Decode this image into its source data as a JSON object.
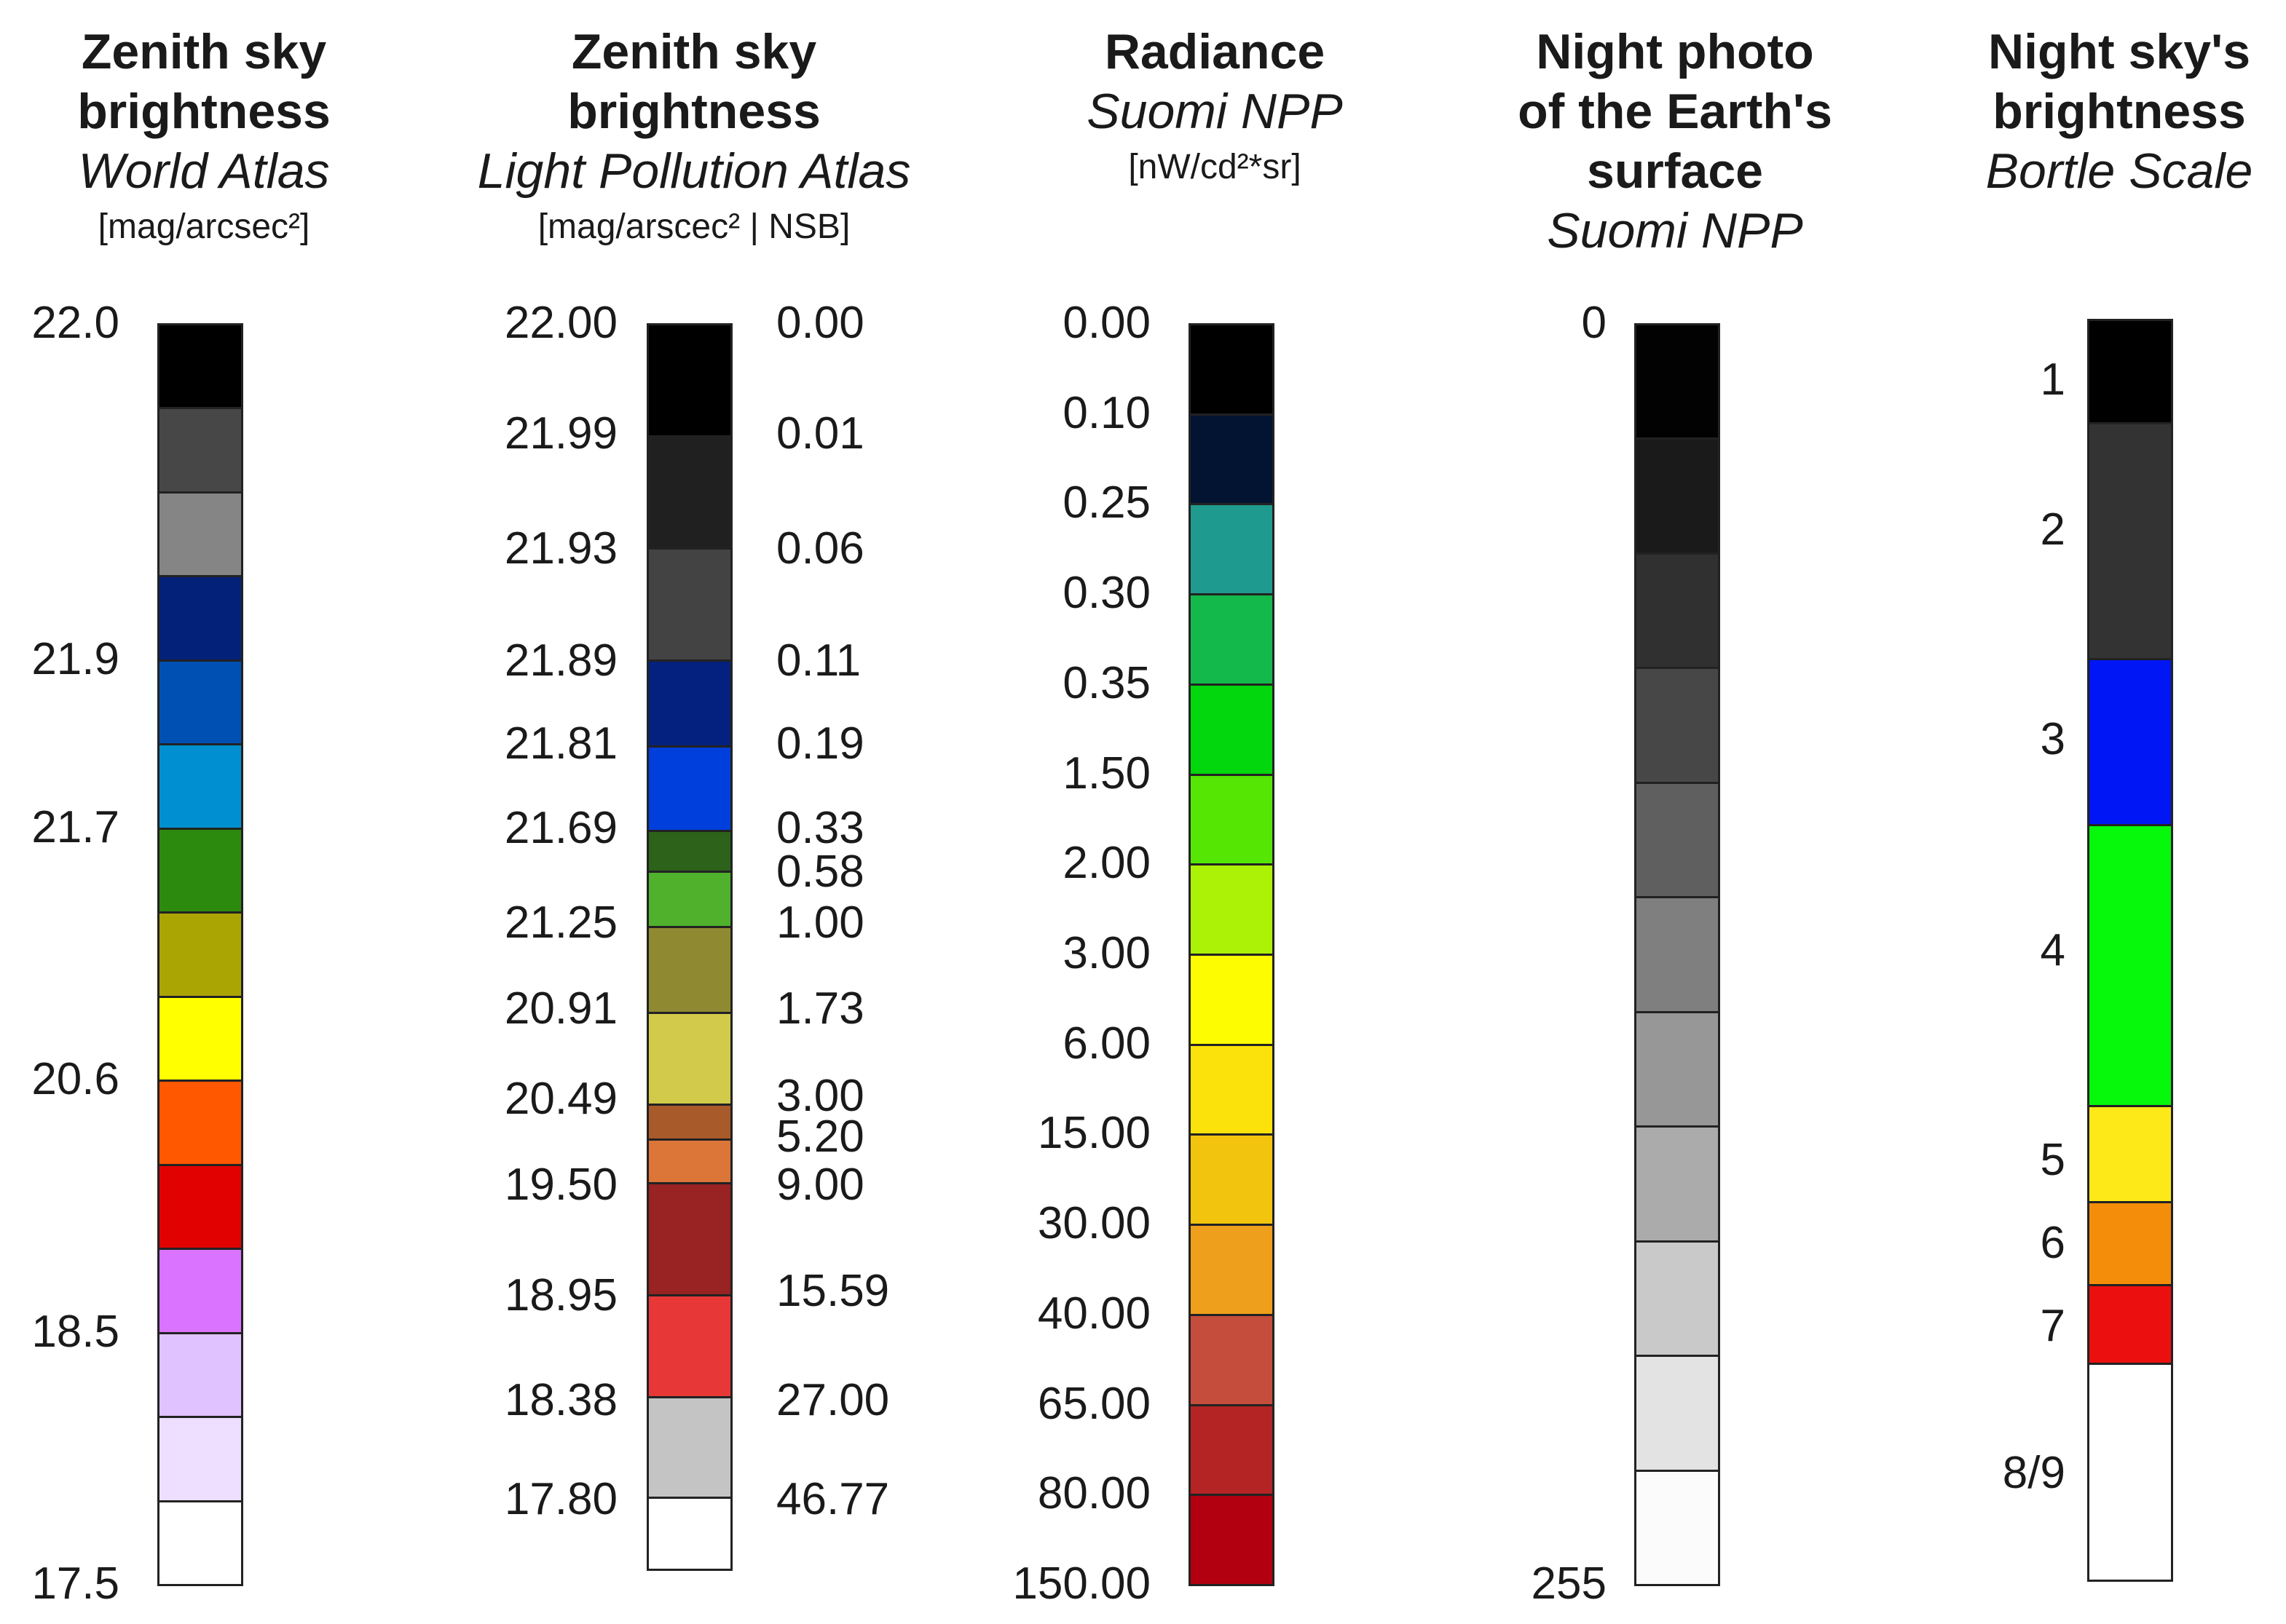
{
  "columns": [
    {
      "title_bold": "Zenith sky brightness",
      "title_bold_lines": [
        "Zenith sky",
        "brightness"
      ],
      "subtitle": "World Atlas",
      "unit": "[mag/arcsec²]",
      "segments": [
        {
          "color": "#000000"
        },
        {
          "color": "#474747"
        },
        {
          "color": "#858585"
        },
        {
          "color": "#04217a"
        },
        {
          "color": "#0050b4"
        },
        {
          "color": "#0090d1"
        },
        {
          "color": "#2c8a0e"
        },
        {
          "color": "#aba504"
        },
        {
          "color": "#ffff00"
        },
        {
          "color": "#ff5800"
        },
        {
          "color": "#e20101"
        },
        {
          "color": "#da73ff"
        },
        {
          "color": "#dfc2ff"
        },
        {
          "color": "#eedeff"
        },
        {
          "color": "#ffffff"
        }
      ],
      "labels_left": [
        {
          "text": "22.0",
          "at_boundary": 0
        },
        {
          "text": "21.9",
          "at_boundary": 4
        },
        {
          "text": "21.7",
          "at_boundary": 6
        },
        {
          "text": "20.6",
          "at_boundary": 9
        },
        {
          "text": "18.5",
          "at_boundary": 12
        },
        {
          "text": "17.5",
          "at_boundary": 15
        }
      ]
    },
    {
      "title_bold": "Zenith sky brightness",
      "title_bold_lines": [
        "Zenith sky",
        "brightness"
      ],
      "subtitle": "Light Pollution Atlas",
      "unit": "[mag/arscec² | NSB]",
      "segments": [
        {
          "color": "#000000",
          "mag": "22.00",
          "nsb": "0.00"
        },
        {
          "color": "#202020",
          "mag": "21.99",
          "nsb": "0.01"
        },
        {
          "color": "#434343",
          "mag": "21.93",
          "nsb": "0.06"
        },
        {
          "color": "#04217f",
          "mag": "21.89",
          "nsb": "0.11"
        },
        {
          "color": "#013fdc",
          "mag": "21.81",
          "nsb": "0.19"
        },
        {
          "color": "#2c6219",
          "mag": "21.69",
          "nsb": "0.33"
        },
        {
          "color": "#4fb12c",
          "mag": "",
          "nsb": "0.58"
        },
        {
          "color": "#8f8a31",
          "mag": "21.25",
          "nsb": "1.00"
        },
        {
          "color": "#d2ca4a",
          "mag": "20.91",
          "nsb": "1.73"
        },
        {
          "color": "#a95a2a",
          "mag": "20.49",
          "nsb": "3.00"
        },
        {
          "color": "#dc7538",
          "mag": "",
          "nsb": "5.20"
        },
        {
          "color": "#992222",
          "mag": "19.50",
          "nsb": "9.00"
        },
        {
          "color": "#e83737",
          "mag": "18.95",
          "nsb": "15.59"
        },
        {
          "color": "#c4c4c4",
          "mag": "18.38",
          "nsb": "27.00"
        },
        {
          "color": "#ffffff",
          "mag": "17.80",
          "nsb": "46.77"
        }
      ]
    },
    {
      "title_bold": "Radiance",
      "title_bold_lines": [
        "Radiance"
      ],
      "subtitle": "Suomi NPP",
      "unit": "[nW/cd²*sr]",
      "segments": [
        {
          "color": "#000000"
        },
        {
          "color": "#021432"
        },
        {
          "color": "#1f9a8e"
        },
        {
          "color": "#13b94b"
        },
        {
          "color": "#02d60c"
        },
        {
          "color": "#55e604"
        },
        {
          "color": "#acf206"
        },
        {
          "color": "#fdfc00"
        },
        {
          "color": "#fbe20b"
        },
        {
          "color": "#f2c40d"
        },
        {
          "color": "#ee9f1b"
        },
        {
          "color": "#c44d3b"
        },
        {
          "color": "#b52424"
        },
        {
          "color": "#b20010"
        }
      ],
      "labels_left": [
        {
          "text": "0.00"
        },
        {
          "text": "0.10"
        },
        {
          "text": "0.25"
        },
        {
          "text": "0.30"
        },
        {
          "text": "0.35"
        },
        {
          "text": "1.50"
        },
        {
          "text": "2.00"
        },
        {
          "text": "3.00"
        },
        {
          "text": "6.00"
        },
        {
          "text": "15.00"
        },
        {
          "text": "30.00"
        },
        {
          "text": "40.00"
        },
        {
          "text": "65.00"
        },
        {
          "text": "80.00"
        },
        {
          "text": "150.00"
        }
      ]
    },
    {
      "title_bold": "Night photo of the Earth's surface",
      "title_bold_lines": [
        "Night photo",
        "of the Earth's",
        "surface"
      ],
      "subtitle": "Suomi NPP",
      "unit": "",
      "segments": [
        {
          "color": "#020202"
        },
        {
          "color": "#1a1a1a"
        },
        {
          "color": "#303030"
        },
        {
          "color": "#474747"
        },
        {
          "color": "#5f5f5f"
        },
        {
          "color": "#7f7f7f"
        },
        {
          "color": "#979797"
        },
        {
          "color": "#ababab"
        },
        {
          "color": "#c9c9c9"
        },
        {
          "color": "#e3e3e3"
        },
        {
          "color": "#fbfbfb"
        }
      ],
      "labels_left": [
        {
          "text": "0",
          "at_boundary": 0
        },
        {
          "text": "255",
          "at_boundary": 11
        }
      ]
    },
    {
      "title_bold": "Night sky's brightness",
      "title_bold_lines": [
        "Night sky's",
        "brightness"
      ],
      "subtitle": "Bortle Scale",
      "unit": "",
      "segments": [
        {
          "color": "#000000",
          "label": "1"
        },
        {
          "color": "#333333",
          "label": "2"
        },
        {
          "color": "#0116f5",
          "label": "3"
        },
        {
          "color": "#06f80a",
          "label": "4"
        },
        {
          "color": "#fde918",
          "label": "5"
        },
        {
          "color": "#f48d0a",
          "label": "6"
        },
        {
          "color": "#ec0f0f",
          "label": "7"
        },
        {
          "color": "#ffffff",
          "label": "8/9"
        }
      ]
    }
  ]
}
